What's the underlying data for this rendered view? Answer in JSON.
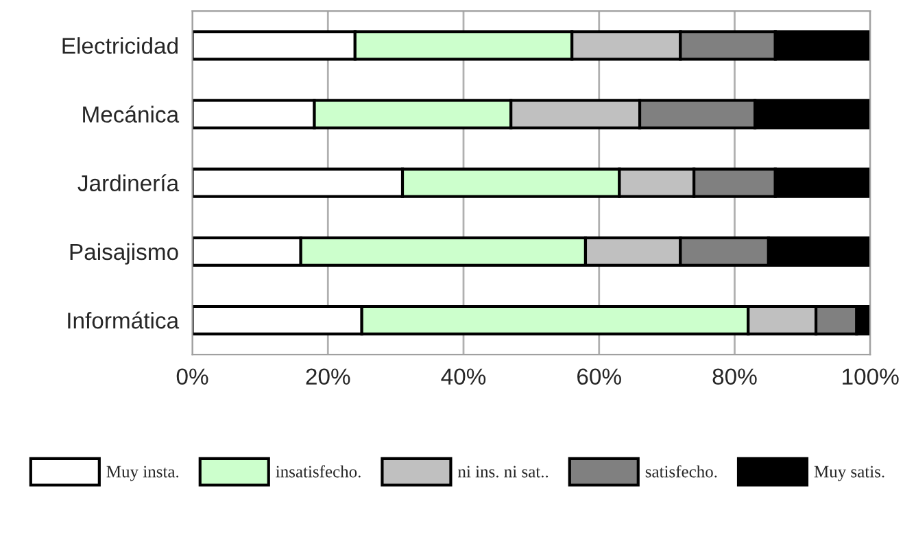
{
  "chart_data": {
    "type": "bar",
    "orientation": "horizontal",
    "stacked": true,
    "categories": [
      "Electricidad",
      "Mecánica",
      "Jardinería",
      "Paisajismo",
      "Informática"
    ],
    "series": [
      {
        "name": "Muy insta.",
        "color": "#ffffff",
        "values": [
          24,
          18,
          31,
          16,
          25
        ]
      },
      {
        "name": "insatisfecho.",
        "color": "#ccffcc",
        "values": [
          32,
          29,
          32,
          42,
          57
        ]
      },
      {
        "name": "ni ins. ni sat..",
        "color": "#c0c0c0",
        "values": [
          16,
          19,
          11,
          14,
          10
        ]
      },
      {
        "name": "satisfecho.",
        "color": "#808080",
        "values": [
          14,
          17,
          12,
          13,
          6
        ]
      },
      {
        "name": "Muy satis.",
        "color": "#000000",
        "values": [
          14,
          17,
          14,
          15,
          2
        ]
      }
    ],
    "xlim": [
      0,
      100
    ],
    "xticks": [
      {
        "value": 0,
        "label": "0%"
      },
      {
        "value": 20,
        "label": "20%"
      },
      {
        "value": 40,
        "label": "40%"
      },
      {
        "value": 60,
        "label": "60%"
      },
      {
        "value": 80,
        "label": "80%"
      },
      {
        "value": 100,
        "label": "100%"
      }
    ],
    "grid": "x",
    "legend": "bottom"
  }
}
